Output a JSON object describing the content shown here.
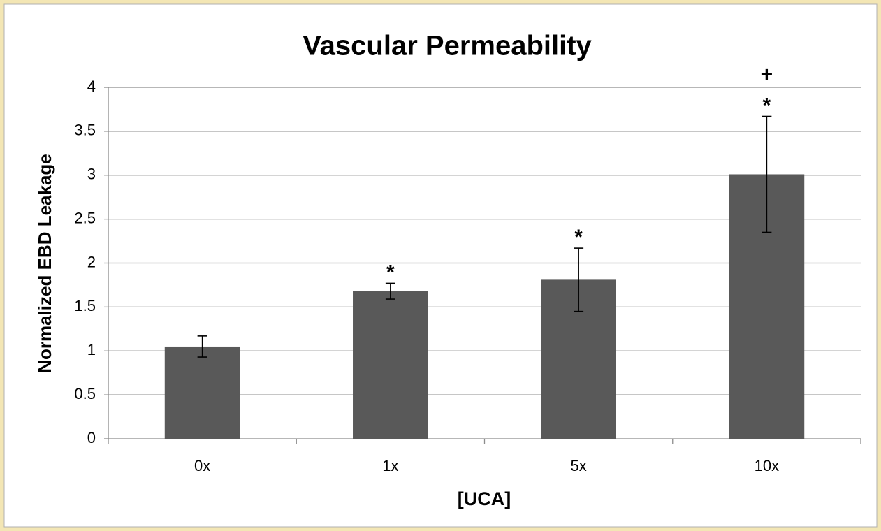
{
  "chart_data": {
    "type": "bar",
    "title": "Vascular Permeability",
    "x_label": "[UCA]",
    "y_label": "Normalized EBD Leakage",
    "categories": [
      "0x",
      "1x",
      "5x",
      "10x"
    ],
    "values": [
      1.05,
      1.68,
      1.81,
      3.01
    ],
    "errors": [
      0.12,
      0.09,
      0.36,
      0.66
    ],
    "color": "#595959",
    "ylim": [
      0,
      4
    ],
    "yticks": [
      0,
      0.5,
      1,
      1.5,
      2,
      2.5,
      3,
      3.5,
      4
    ],
    "grid": true,
    "annotations": [
      {
        "text": "*",
        "x": "1x"
      },
      {
        "text": "*",
        "x": "5x"
      },
      {
        "text": "*",
        "x": "10x"
      },
      {
        "text": "+",
        "x": "10x"
      }
    ]
  }
}
